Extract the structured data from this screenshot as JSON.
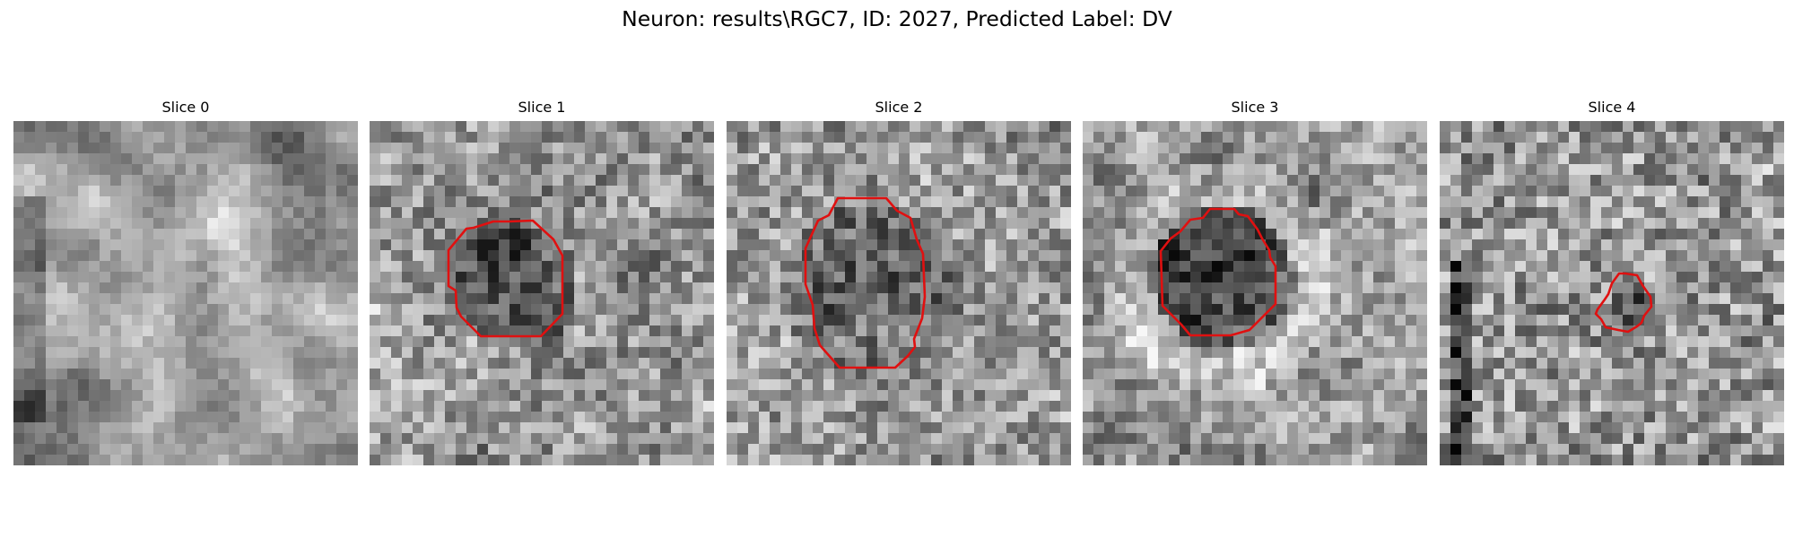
{
  "figure": {
    "title": "Neuron: results\\RGC7, ID: 2027, Predicted Label: DV"
  },
  "panels": [
    {
      "label": "Slice 0",
      "contour": false
    },
    {
      "label": "Slice 1",
      "contour": true
    },
    {
      "label": "Slice 2",
      "contour": true
    },
    {
      "label": "Slice 3",
      "contour": true
    },
    {
      "label": "Slice 4",
      "contour": true
    }
  ],
  "colors": {
    "contour": "#e01010",
    "background": "#ffffff"
  },
  "colormap": "grayscale"
}
